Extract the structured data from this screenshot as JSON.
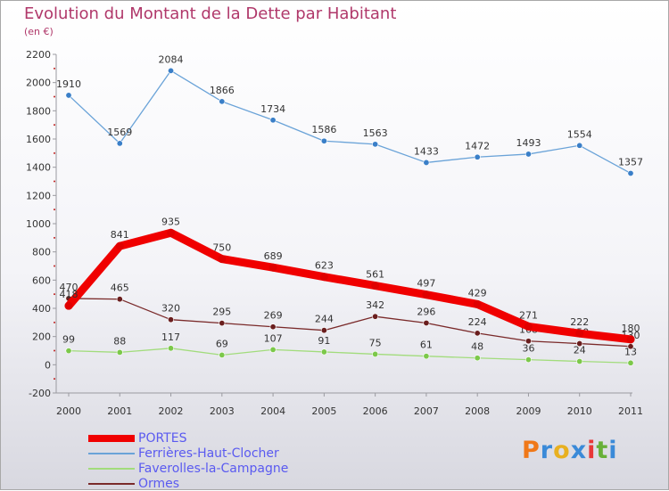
{
  "header": {
    "title": "Evolution du Montant de la Dette par Habitant",
    "subtitle": "(en €)"
  },
  "logo": {
    "letters": [
      "P",
      "r",
      "o",
      "x",
      "i",
      "t",
      "i"
    ],
    "colors": [
      "#f07818",
      "#3a8ad8",
      "#e8b020",
      "#3a8ad8",
      "#e83838",
      "#68b038",
      "#3a8ad8"
    ]
  },
  "chart_data": {
    "type": "line",
    "x": [
      "2000",
      "2001",
      "2002",
      "2003",
      "2004",
      "2005",
      "2006",
      "2007",
      "2008",
      "2009",
      "2010",
      "2011"
    ],
    "yticks": [
      "2200",
      "2000",
      "1800",
      "1600",
      "1400",
      "1200",
      "1000",
      "800",
      "600",
      "400",
      "200",
      "0",
      "-200"
    ],
    "ylim": [
      -200,
      2200
    ],
    "grid": false,
    "legend_position": "bottom-left",
    "series": [
      {
        "name": "Ferrières-Haut-Clocher",
        "color": "#6aa3d8",
        "marker": "#3a7fc8",
        "values": [
          1910,
          1569,
          2084,
          1866,
          1734,
          1586,
          1563,
          1433,
          1472,
          1493,
          1554,
          1357
        ],
        "labels": [
          "1910",
          "1569",
          "2084",
          "1866",
          "1734",
          "1586",
          "1563",
          "1433",
          "1472",
          "1493",
          "1554",
          "1357"
        ]
      },
      {
        "name": "Faverolles-la-Campagne",
        "color": "#a2dc7c",
        "marker": "#7cc84a",
        "values": [
          99,
          88,
          117,
          69,
          107,
          91,
          75,
          61,
          48,
          36,
          24,
          13
        ],
        "labels": [
          "99",
          "88",
          "117",
          "69",
          "107",
          "91",
          "75",
          "61",
          "48",
          "36",
          "24",
          "13"
        ]
      },
      {
        "name": "Ormes",
        "color": "#7a2a2a",
        "marker": "#6a1e1e",
        "values": [
          470,
          465,
          320,
          295,
          269,
          244,
          342,
          296,
          224,
          168,
          150,
          130
        ],
        "labels": [
          "470",
          "465",
          "320",
          "295",
          "269",
          "244",
          "342",
          "296",
          "224",
          "168",
          "150",
          "130"
        ]
      },
      {
        "name": "PORTES",
        "color": "#f00000",
        "marker": "#e00000",
        "values": [
          418,
          841,
          935,
          750,
          689,
          623,
          561,
          497,
          429,
          271,
          222,
          180
        ],
        "labels": [
          "418",
          "841",
          "935",
          "750",
          "689",
          "623",
          "561",
          "497",
          "429",
          "271",
          "222",
          "180"
        ]
      }
    ],
    "legend": [
      {
        "name": "PORTES",
        "color": "#f00000"
      },
      {
        "name": "Ferrières-Haut-Clocher",
        "color": "#6aa3d8"
      },
      {
        "name": "Faverolles-la-Campagne",
        "color": "#a2dc7c"
      },
      {
        "name": "Ormes",
        "color": "#7a2a2a"
      }
    ]
  }
}
